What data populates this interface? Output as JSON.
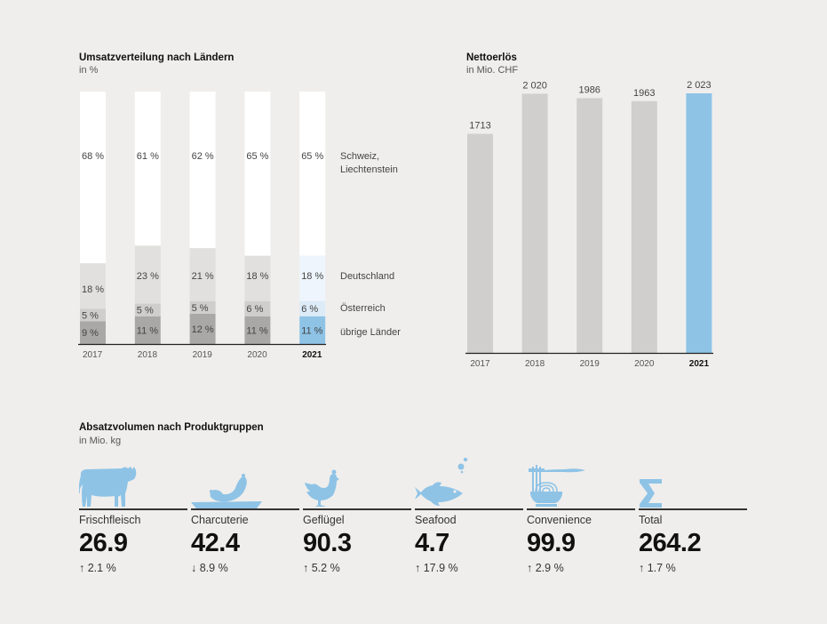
{
  "chart_data": [
    {
      "type": "bar",
      "stacked": true,
      "title": "Umsatzverteilung nach Ländern",
      "subtitle": "in %",
      "categories": [
        "2017",
        "2018",
        "2019",
        "2020",
        "2021"
      ],
      "highlight_category": "2021",
      "series": [
        {
          "name": "übrige Länder",
          "values": [
            9,
            11,
            12,
            11,
            11
          ],
          "color": "#a9a8a6",
          "highlight_color": "#8ec3e6"
        },
        {
          "name": "Österreich",
          "values": [
            5,
            5,
            5,
            6,
            6
          ],
          "color": "#cfcecc",
          "highlight_color": "#dcebf7"
        },
        {
          "name": "Deutschland",
          "values": [
            18,
            23,
            21,
            18,
            18
          ],
          "color": "#e1e0de",
          "highlight_color": "#eef5fc"
        },
        {
          "name": "Schweiz, Liechtenstein",
          "values": [
            68,
            61,
            62,
            65,
            65
          ],
          "color": "#ffffff",
          "highlight_color": "#ffffff"
        }
      ],
      "value_labels": {
        "übrige Länder": [
          "9 %",
          "11 %",
          "12 %",
          "11 %",
          "11 %"
        ],
        "Österreich": [
          "5 %",
          "5 %",
          "5 %",
          "6 %",
          "6 %"
        ],
        "Deutschland": [
          "18 %",
          "23 %",
          "21 %",
          "18 %",
          "18 %"
        ],
        "Schweiz, Liechtenstein": [
          "68 %",
          "61 %",
          "62 %",
          "65 %",
          "65 %"
        ]
      },
      "legend": [
        "Schweiz,",
        "Liechtenstein",
        "Deutschland",
        "Österreich",
        "übrige Länder"
      ],
      "legend_placement": "right",
      "xlabel": "",
      "ylabel": "",
      "ylim": [
        0,
        100
      ]
    },
    {
      "type": "bar",
      "title": "Nettoerlös",
      "subtitle": "in Mio. CHF",
      "categories": [
        "2017",
        "2018",
        "2019",
        "2020",
        "2021"
      ],
      "values": [
        1713,
        2020,
        1986,
        1963,
        2023
      ],
      "value_labels": [
        "1713",
        "2 020",
        "1986",
        "1963",
        "2 023"
      ],
      "highlight_category": "2021",
      "color": "#d0cfcd",
      "highlight_color": "#8ec3e6",
      "xlabel": "",
      "ylabel": "",
      "ylim": [
        0,
        2023
      ]
    }
  ],
  "products": {
    "title": "Absatzvolumen nach Produktgruppen",
    "subtitle": "in Mio. kg",
    "icon_color": "#8ec3e6",
    "items": [
      {
        "name": "Frischfleisch",
        "value": "26.9",
        "change": "↑ 2.1 %",
        "icon": "cow-icon"
      },
      {
        "name": "Charcuterie",
        "value": "42.4",
        "change": "↓ 8.9 %",
        "icon": "sausage-icon"
      },
      {
        "name": "Geflügel",
        "value": "90.3",
        "change": "↑ 5.2 %",
        "icon": "chicken-icon"
      },
      {
        "name": "Seafood",
        "value": "4.7",
        "change": "↑ 17.9 %",
        "icon": "fish-icon"
      },
      {
        "name": "Convenience",
        "value": "99.9",
        "change": "↑ 2.9 %",
        "icon": "noodles-icon"
      },
      {
        "name": "Total",
        "value": "264.2",
        "change": "↑ 1.7 %",
        "icon": "sigma-icon"
      }
    ]
  }
}
